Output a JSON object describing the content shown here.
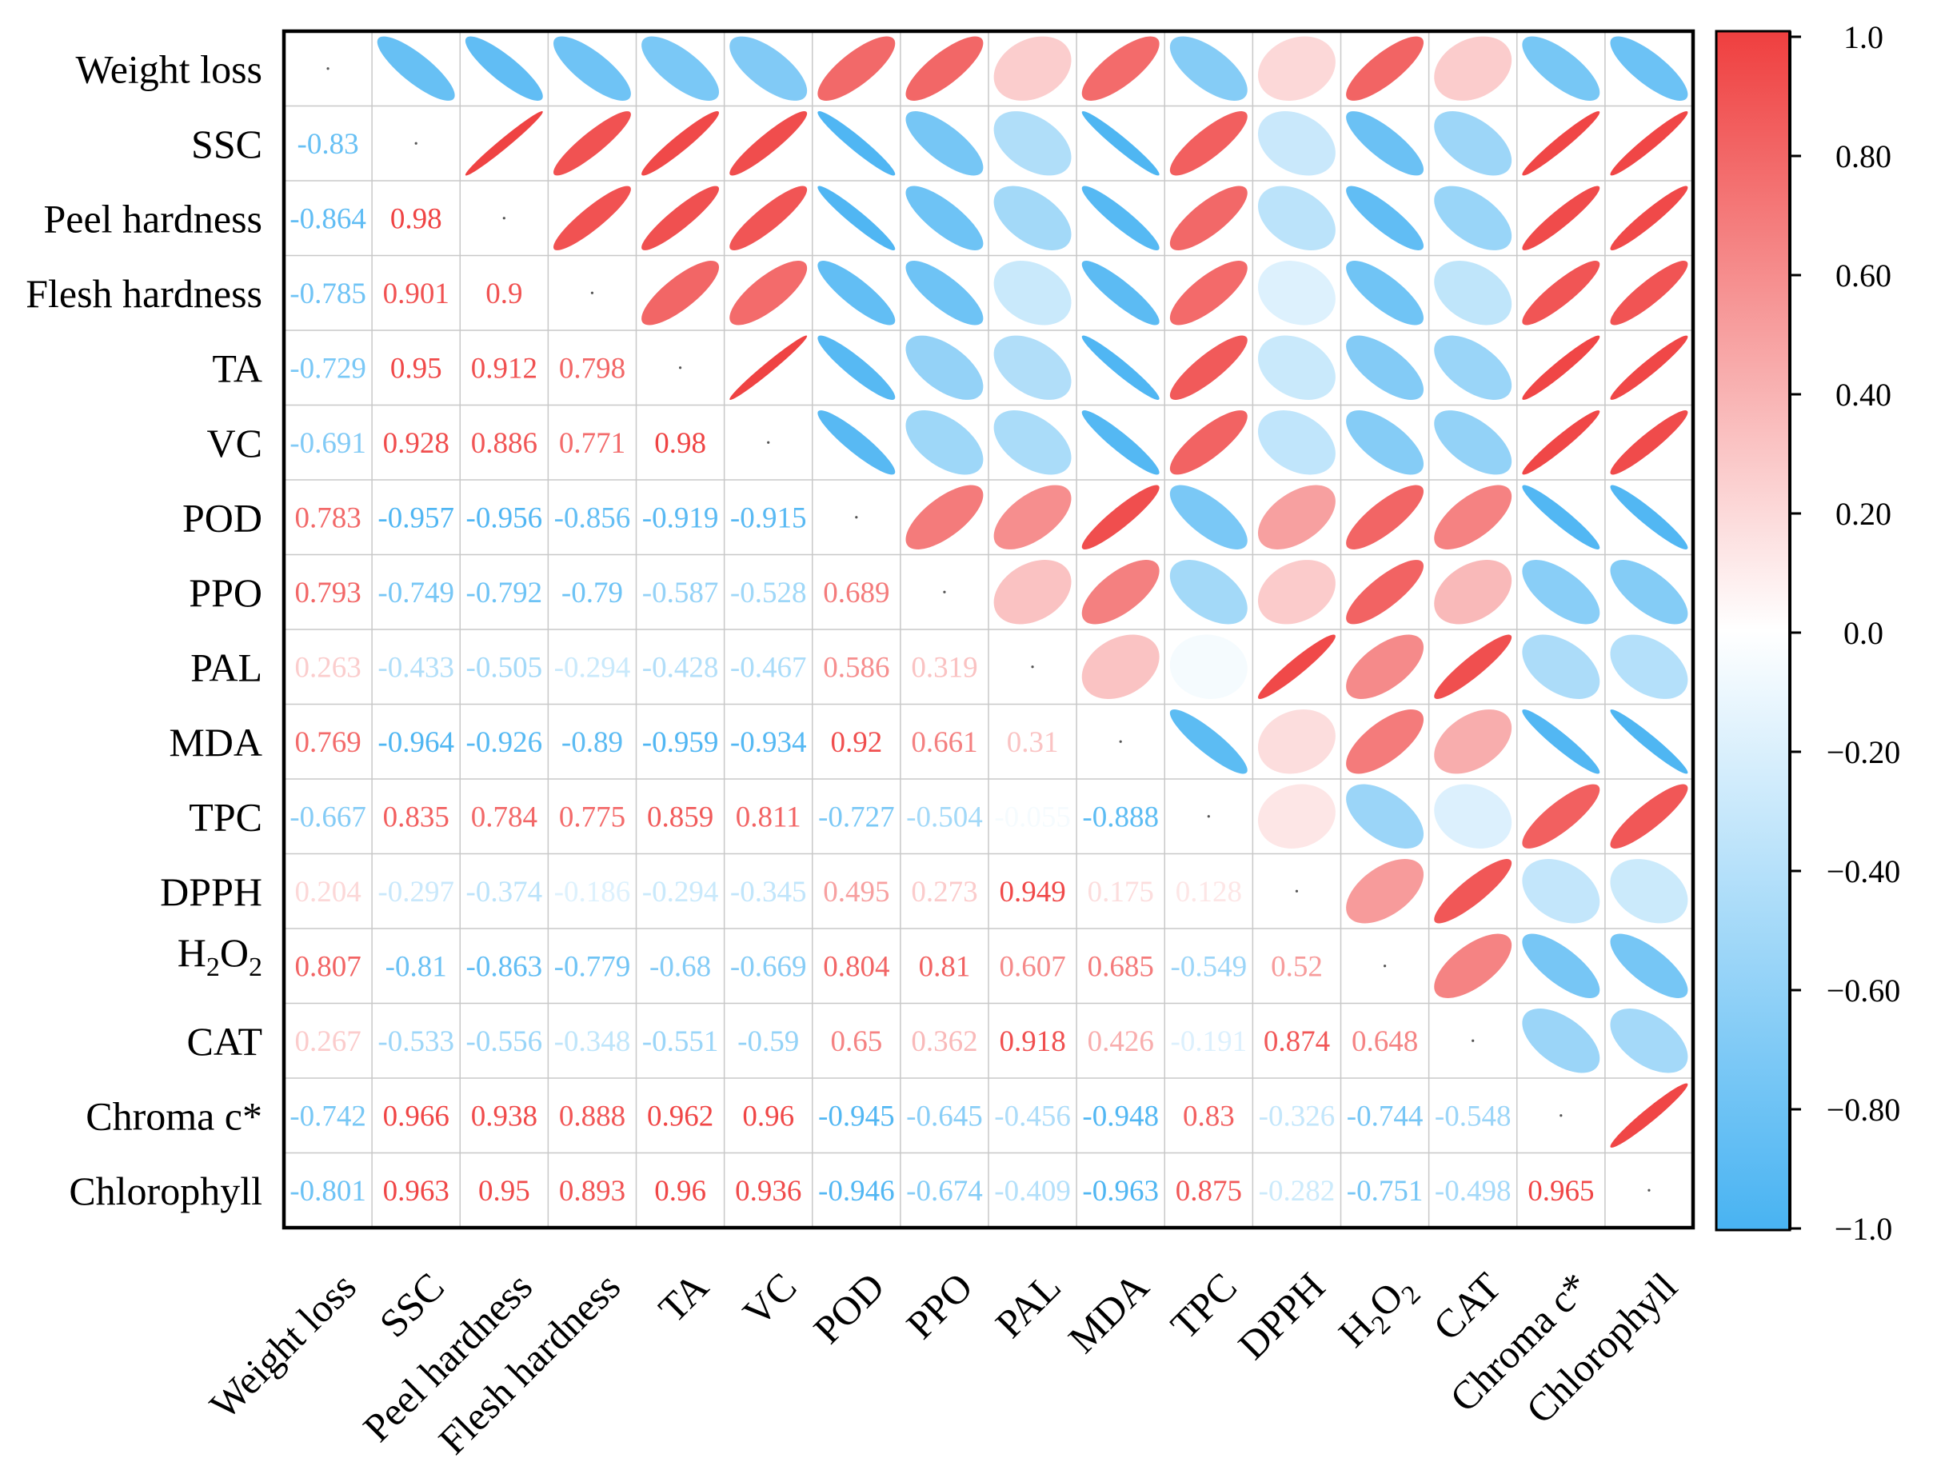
{
  "chart_data": {
    "type": "heatmap",
    "variables": [
      "Weight loss",
      "SSC",
      "Peel hardness",
      "Flesh hardness",
      "TA",
      "VC",
      "POD",
      "PPO",
      "PAL",
      "MDA",
      "TPC",
      "DPPH",
      "H2O2",
      "CAT",
      "Chroma c*",
      "Chlorophyll"
    ],
    "lower_triangle": [
      [],
      [
        -0.83
      ],
      [
        -0.864,
        0.98
      ],
      [
        -0.785,
        0.901,
        0.9
      ],
      [
        -0.729,
        0.95,
        0.912,
        0.798
      ],
      [
        -0.691,
        0.928,
        0.886,
        0.771,
        0.98
      ],
      [
        0.783,
        -0.957,
        -0.956,
        -0.856,
        -0.919,
        -0.915
      ],
      [
        0.793,
        -0.749,
        -0.792,
        -0.79,
        -0.587,
        -0.528,
        0.689
      ],
      [
        0.263,
        -0.433,
        -0.505,
        -0.294,
        -0.428,
        -0.467,
        0.586,
        0.319
      ],
      [
        0.769,
        -0.964,
        -0.926,
        -0.89,
        -0.959,
        -0.934,
        0.92,
        0.661,
        0.31
      ],
      [
        -0.667,
        0.835,
        0.784,
        0.775,
        0.859,
        0.811,
        -0.727,
        -0.504,
        -0.055,
        -0.888
      ],
      [
        0.204,
        -0.297,
        -0.374,
        -0.186,
        -0.294,
        -0.345,
        0.495,
        0.273,
        0.949,
        0.175,
        0.128
      ],
      [
        0.807,
        -0.81,
        -0.863,
        -0.779,
        -0.68,
        -0.669,
        0.804,
        0.81,
        0.607,
        0.685,
        -0.549,
        0.52
      ],
      [
        0.267,
        -0.533,
        -0.556,
        -0.348,
        -0.551,
        -0.59,
        0.65,
        0.362,
        0.918,
        0.426,
        -0.191,
        0.874,
        0.648
      ],
      [
        -0.742,
        0.966,
        0.938,
        0.888,
        0.962,
        0.96,
        -0.945,
        -0.645,
        -0.456,
        -0.948,
        0.83,
        -0.326,
        -0.744,
        -0.548
      ],
      [
        -0.801,
        0.963,
        0.95,
        0.893,
        0.96,
        0.936,
        -0.946,
        -0.674,
        -0.409,
        -0.963,
        0.875,
        -0.282,
        -0.751,
        -0.498,
        0.965
      ]
    ],
    "colorbar": {
      "range": [
        -1,
        1
      ],
      "position": "right",
      "ticks": [
        1,
        0.8,
        0.6,
        0.4,
        0.2,
        0,
        -0.2,
        -0.4,
        -0.6,
        -0.8,
        -1
      ],
      "tick_labels": [
        "1.0",
        "0.80",
        "0.60",
        "0.40",
        "0.20",
        "0.0",
        "−0.20",
        "−0.40",
        "−0.60",
        "−0.80",
        "−1.0"
      ]
    },
    "colors": {
      "positive": "#EF3F3F",
      "zero": "#FFFFFF",
      "negative": "#48B3F2",
      "grid": "#C8C8C8",
      "frame": "#000000"
    }
  }
}
